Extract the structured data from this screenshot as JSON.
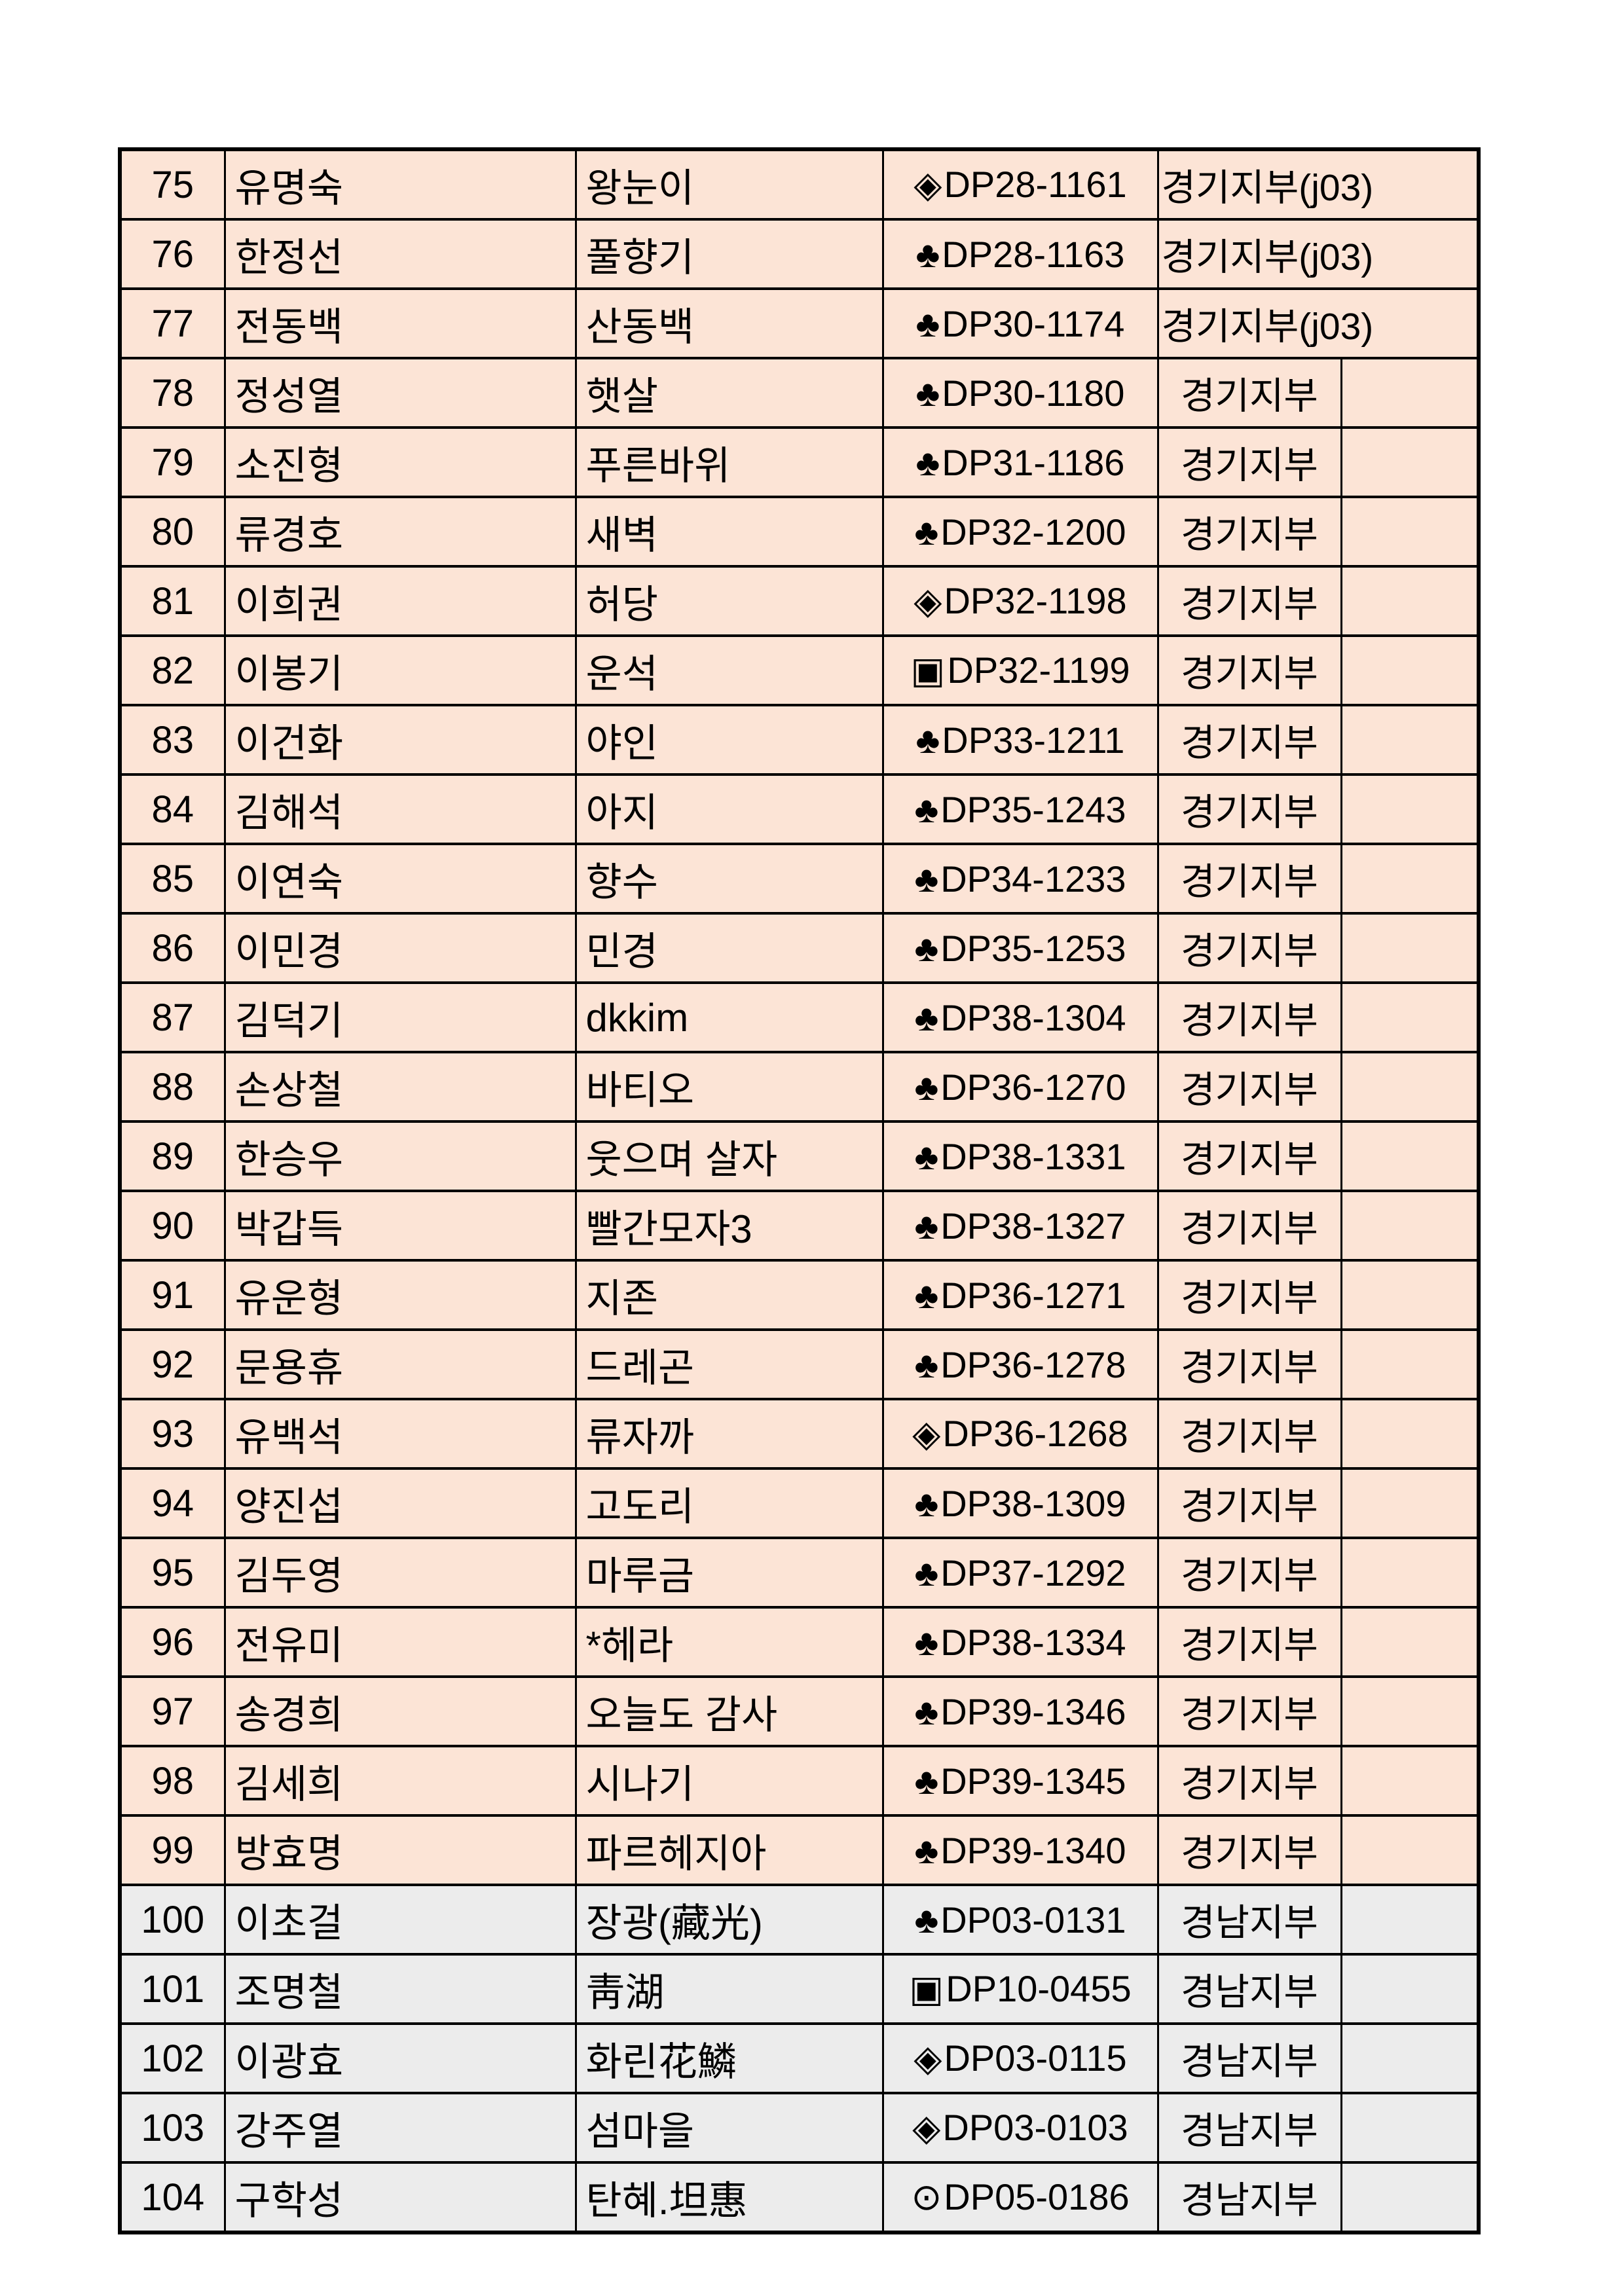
{
  "table": {
    "description_colors": {
      "row_peach": "#FCE4D6",
      "row_gray": "#ECECEC",
      "border": "#000000",
      "text": "#000000",
      "page_background": "#FFFFFF"
    },
    "rows": [
      {
        "no": "75",
        "name": "유명숙",
        "nickname": "왕눈이",
        "symbol": "◈",
        "symbol_name": "diamond-in-diamond-icon",
        "code": "DP28-1161",
        "branch": "경기지부(j03)",
        "branch_merged": true,
        "theme": "peach"
      },
      {
        "no": "76",
        "name": "한정선",
        "nickname": "풀향기",
        "symbol": "♣",
        "symbol_name": "club-icon",
        "code": "DP28-1163",
        "branch": "경기지부(j03)",
        "branch_merged": true,
        "theme": "peach"
      },
      {
        "no": "77",
        "name": "전동백",
        "nickname": "산동백",
        "symbol": "♣",
        "symbol_name": "club-icon",
        "code": "DP30-1174",
        "branch": "경기지부(j03)",
        "branch_merged": true,
        "theme": "peach"
      },
      {
        "no": "78",
        "name": "정성열",
        "nickname": "햇살",
        "symbol": "♣",
        "symbol_name": "club-icon",
        "code": "DP30-1180",
        "branch": "경기지부",
        "branch_merged": false,
        "theme": "peach"
      },
      {
        "no": "79",
        "name": "소진형",
        "nickname": "푸른바위",
        "symbol": "♣",
        "symbol_name": "club-icon",
        "code": "DP31-1186",
        "branch": "경기지부",
        "branch_merged": false,
        "theme": "peach"
      },
      {
        "no": "80",
        "name": "류경호",
        "nickname": "새벽",
        "symbol": "♣",
        "symbol_name": "club-icon",
        "code": "DP32-1200",
        "branch": "경기지부",
        "branch_merged": false,
        "theme": "peach"
      },
      {
        "no": "81",
        "name": "이희권",
        "nickname": "허당",
        "symbol": "◈",
        "symbol_name": "diamond-in-diamond-icon",
        "code": "DP32-1198",
        "branch": "경기지부",
        "branch_merged": false,
        "theme": "peach"
      },
      {
        "no": "82",
        "name": "이봉기",
        "nickname": "운석",
        "symbol": "▣",
        "symbol_name": "square-in-square-icon",
        "code": "DP32-1199",
        "branch": "경기지부",
        "branch_merged": false,
        "theme": "peach"
      },
      {
        "no": "83",
        "name": "이건화",
        "nickname": "야인",
        "symbol": "♣",
        "symbol_name": "club-icon",
        "code": "DP33-1211",
        "branch": "경기지부",
        "branch_merged": false,
        "theme": "peach"
      },
      {
        "no": "84",
        "name": "김해석",
        "nickname": "아지",
        "symbol": "♣",
        "symbol_name": "club-icon",
        "code": "DP35-1243",
        "branch": "경기지부",
        "branch_merged": false,
        "theme": "peach"
      },
      {
        "no": "85",
        "name": "이연숙",
        "nickname": "향수",
        "symbol": "♣",
        "symbol_name": "club-icon",
        "code": "DP34-1233",
        "branch": "경기지부",
        "branch_merged": false,
        "theme": "peach"
      },
      {
        "no": "86",
        "name": "이민경",
        "nickname": "민경",
        "symbol": "♣",
        "symbol_name": "club-icon",
        "code": "DP35-1253",
        "branch": "경기지부",
        "branch_merged": false,
        "theme": "peach"
      },
      {
        "no": "87",
        "name": "김덕기",
        "nickname": "dkkim",
        "symbol": "♣",
        "symbol_name": "club-icon",
        "code": "DP38-1304",
        "branch": "경기지부",
        "branch_merged": false,
        "theme": "peach"
      },
      {
        "no": "88",
        "name": "손상철",
        "nickname": "바티오",
        "symbol": "♣",
        "symbol_name": "club-icon",
        "code": "DP36-1270",
        "branch": "경기지부",
        "branch_merged": false,
        "theme": "peach"
      },
      {
        "no": "89",
        "name": "한승우",
        "nickname": "웃으며 살자",
        "symbol": "♣",
        "symbol_name": "club-icon",
        "code": "DP38-1331",
        "branch": "경기지부",
        "branch_merged": false,
        "theme": "peach"
      },
      {
        "no": "90",
        "name": "박갑득",
        "nickname": "빨간모자3",
        "symbol": "♣",
        "symbol_name": "club-icon",
        "code": "DP38-1327",
        "branch": "경기지부",
        "branch_merged": false,
        "theme": "peach"
      },
      {
        "no": "91",
        "name": "유운형",
        "nickname": "지존",
        "symbol": "♣",
        "symbol_name": "club-icon",
        "code": "DP36-1271",
        "branch": "경기지부",
        "branch_merged": false,
        "theme": "peach"
      },
      {
        "no": "92",
        "name": "문용휴",
        "nickname": "드레곤",
        "symbol": "♣",
        "symbol_name": "club-icon",
        "code": "DP36-1278",
        "branch": "경기지부",
        "branch_merged": false,
        "theme": "peach"
      },
      {
        "no": "93",
        "name": "유백석",
        "nickname": "류자까",
        "symbol": "◈",
        "symbol_name": "diamond-in-diamond-icon",
        "code": "DP36-1268",
        "branch": "경기지부",
        "branch_merged": false,
        "theme": "peach"
      },
      {
        "no": "94",
        "name": "양진섭",
        "nickname": "고도리",
        "symbol": "♣",
        "symbol_name": "club-icon",
        "code": "DP38-1309",
        "branch": "경기지부",
        "branch_merged": false,
        "theme": "peach"
      },
      {
        "no": "95",
        "name": "김두영",
        "nickname": "마루금",
        "symbol": "♣",
        "symbol_name": "club-icon",
        "code": "DP37-1292",
        "branch": "경기지부",
        "branch_merged": false,
        "theme": "peach"
      },
      {
        "no": "96",
        "name": "전유미",
        "nickname": "*헤라",
        "symbol": "♣",
        "symbol_name": "club-icon",
        "code": "DP38-1334",
        "branch": "경기지부",
        "branch_merged": false,
        "theme": "peach"
      },
      {
        "no": "97",
        "name": "송경희",
        "nickname": "오늘도 감사",
        "symbol": "♣",
        "symbol_name": "club-icon",
        "code": "DP39-1346",
        "branch": "경기지부",
        "branch_merged": false,
        "theme": "peach"
      },
      {
        "no": "98",
        "name": "김세희",
        "nickname": "시나기",
        "symbol": "♣",
        "symbol_name": "club-icon",
        "code": "DP39-1345",
        "branch": "경기지부",
        "branch_merged": false,
        "theme": "peach"
      },
      {
        "no": "99",
        "name": "방효명",
        "nickname": "파르헤지아",
        "symbol": "♣",
        "symbol_name": "club-icon",
        "code": "DP39-1340",
        "branch": "경기지부",
        "branch_merged": false,
        "theme": "peach"
      },
      {
        "no": "100",
        "name": "이초걸",
        "nickname": "장광(藏光)",
        "symbol": "♣",
        "symbol_name": "club-icon",
        "code": "DP03-0131",
        "branch": "경남지부",
        "branch_merged": false,
        "theme": "gray"
      },
      {
        "no": "101",
        "name": "조명철",
        "nickname": "靑湖",
        "symbol": "▣",
        "symbol_name": "square-in-square-icon",
        "code": "DP10-0455",
        "branch": "경남지부",
        "branch_merged": false,
        "theme": "gray"
      },
      {
        "no": "102",
        "name": "이광효",
        "nickname": "화린花鱗",
        "symbol": "◈",
        "symbol_name": "diamond-in-diamond-icon",
        "code": "DP03-0115",
        "branch": "경남지부",
        "branch_merged": false,
        "theme": "gray"
      },
      {
        "no": "103",
        "name": "강주열",
        "nickname": "섬마을",
        "symbol": "◈",
        "symbol_name": "diamond-in-diamond-icon",
        "code": "DP03-0103",
        "branch": "경남지부",
        "branch_merged": false,
        "theme": "gray"
      },
      {
        "no": "104",
        "name": "구학성",
        "nickname": "탄혜.坦惠",
        "symbol": "⊙",
        "symbol_name": "circled-dot-icon",
        "code": "DP05-0186",
        "branch": "경남지부",
        "branch_merged": false,
        "theme": "gray"
      }
    ]
  }
}
